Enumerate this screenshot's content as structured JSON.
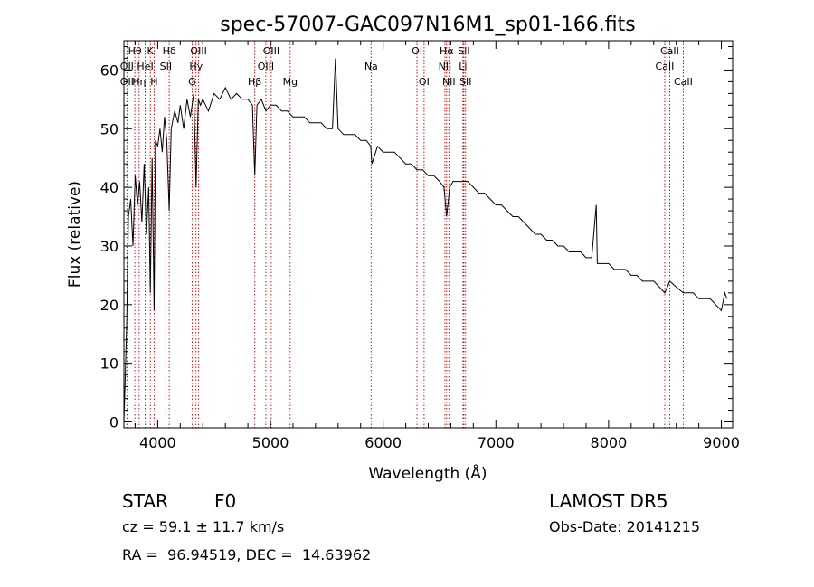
{
  "chart_data": {
    "type": "line",
    "title": "spec-57007-GAC097N16M1_sp01-166.fits",
    "xlabel": "Wavelength (Å)",
    "ylabel": "Flux (relative)",
    "xlim": [
      3700,
      9100
    ],
    "ylim": [
      -1,
      65
    ],
    "xticks": [
      4000,
      5000,
      6000,
      7000,
      8000,
      9000
    ],
    "yticks": [
      0,
      10,
      20,
      30,
      40,
      50,
      60
    ],
    "grid": false,
    "series": [
      {
        "x": [
          3700,
          3710,
          3725,
          3740,
          3760,
          3780,
          3800,
          3820,
          3840,
          3860,
          3880,
          3900,
          3920,
          3934,
          3950,
          3968,
          3980,
          4000,
          4020,
          4040,
          4060,
          4080,
          4102,
          4120,
          4150,
          4180,
          4200,
          4230,
          4260,
          4290,
          4320,
          4340,
          4360,
          4380,
          4400,
          4450,
          4500,
          4550,
          4600,
          4650,
          4700,
          4750,
          4800,
          4840,
          4861,
          4880,
          4920,
          4960,
          5000,
          5050,
          5100,
          5150,
          5200,
          5250,
          5300,
          5350,
          5400,
          5450,
          5500,
          5550,
          5577,
          5600,
          5650,
          5700,
          5750,
          5800,
          5850,
          5890,
          5900,
          5950,
          6000,
          6050,
          6100,
          6150,
          6200,
          6250,
          6300,
          6350,
          6400,
          6450,
          6500,
          6540,
          6563,
          6590,
          6620,
          6650,
          6700,
          6750,
          6800,
          6850,
          6900,
          6950,
          7000,
          7050,
          7100,
          7150,
          7200,
          7250,
          7300,
          7350,
          7400,
          7450,
          7500,
          7550,
          7600,
          7650,
          7700,
          7750,
          7800,
          7850,
          7890,
          7900,
          7950,
          8000,
          8050,
          8100,
          8150,
          8200,
          8250,
          8300,
          8350,
          8400,
          8450,
          8498,
          8542,
          8600,
          8662,
          8700,
          8750,
          8800,
          8850,
          8900,
          8950,
          9000,
          9030,
          9050
        ],
        "y": [
          0,
          6,
          17,
          35,
          38,
          30,
          42,
          37,
          41,
          34,
          44,
          32,
          40,
          22,
          45,
          19,
          48,
          47,
          50,
          46,
          52,
          48,
          36,
          50,
          53,
          51,
          54,
          50,
          55,
          52,
          56,
          40,
          55,
          54,
          55,
          53,
          56,
          55,
          57,
          55,
          56,
          55,
          55,
          54,
          42,
          54,
          55,
          53,
          54,
          54,
          53,
          53,
          52,
          52,
          52,
          51,
          51,
          51,
          50,
          50,
          62,
          50,
          49,
          49,
          49,
          48,
          48,
          47,
          44,
          47,
          46,
          46,
          46,
          45,
          44,
          44,
          43,
          43,
          42,
          42,
          41,
          40,
          35,
          40,
          41,
          41,
          41,
          41,
          40,
          39,
          39,
          38,
          37,
          37,
          36,
          35,
          35,
          34,
          33,
          32,
          32,
          31,
          31,
          30,
          30,
          29,
          29,
          29,
          28,
          28,
          37,
          27,
          27,
          27,
          26,
          26,
          26,
          25,
          25,
          24,
          24,
          24,
          23,
          22,
          24,
          23,
          22,
          22,
          22,
          21,
          21,
          21,
          20,
          19,
          22,
          21
        ]
      }
    ],
    "lines": [
      {
        "label": "Hθ",
        "x": 3797,
        "row": 1
      },
      {
        "label": "OII",
        "x": 3727,
        "row": 2
      },
      {
        "label": "OII",
        "x": 3727,
        "row": 3
      },
      {
        "label": "K",
        "x": 3934,
        "row": 1
      },
      {
        "label": "HeI",
        "x": 3889,
        "row": 2
      },
      {
        "label": "Hη",
        "x": 3835,
        "row": 3
      },
      {
        "label": "Hδ",
        "x": 4102,
        "row": 1
      },
      {
        "label": "SII",
        "x": 4072,
        "row": 2
      },
      {
        "label": "H",
        "x": 3968,
        "row": 3
      },
      {
        "label": "OIII",
        "x": 4363,
        "row": 1
      },
      {
        "label": "Hγ",
        "x": 4340,
        "row": 2
      },
      {
        "label": "G",
        "x": 4305,
        "row": 3
      },
      {
        "label": "OIII",
        "x": 5007,
        "row": 1
      },
      {
        "label": "OIII",
        "x": 4959,
        "row": 2
      },
      {
        "label": "Hβ",
        "x": 4861,
        "row": 3
      },
      {
        "label": "Mg",
        "x": 5175,
        "row": 3
      },
      {
        "label": "Na",
        "x": 5893,
        "row": 2
      },
      {
        "label": "OI",
        "x": 6300,
        "row": 1
      },
      {
        "label": "OI",
        "x": 6363,
        "row": 3
      },
      {
        "label": "Hα",
        "x": 6563,
        "row": 1
      },
      {
        "label": "SII",
        "x": 6716,
        "row": 1
      },
      {
        "label": "NII",
        "x": 6548,
        "row": 2
      },
      {
        "label": "Li",
        "x": 6708,
        "row": 2
      },
      {
        "label": "NII",
        "x": 6583,
        "row": 3
      },
      {
        "label": "SII",
        "x": 6731,
        "row": 3
      },
      {
        "label": "CaII",
        "x": 8542,
        "row": 1
      },
      {
        "label": "CaII",
        "x": 8498,
        "row": 2
      },
      {
        "label": "CaII",
        "x": 8662,
        "row": 3
      }
    ],
    "line_color": "#b00000"
  },
  "info": {
    "class_label": "STAR",
    "subclass": "F0",
    "survey": "LAMOST DR5",
    "cz": "cz = 59.1 ± 11.7 km/s",
    "obs_date": "Obs-Date: 20141215",
    "coords": "RA =  96.94519, DEC =  14.63962"
  }
}
